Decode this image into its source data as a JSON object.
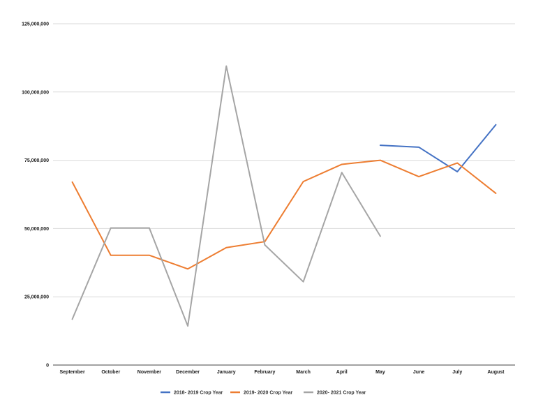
{
  "chart_data": {
    "type": "line",
    "title": "",
    "xlabel": "",
    "ylabel": "",
    "categories": [
      "September",
      "October",
      "November",
      "December",
      "January",
      "February",
      "March",
      "April",
      "May",
      "June",
      "July",
      "August"
    ],
    "y_ticks": [
      0,
      25000000,
      50000000,
      75000000,
      100000000,
      125000000
    ],
    "y_tick_labels": [
      "0",
      "25,000,000",
      "50,000,000",
      "75,000,000",
      "100,000,000",
      "125,000,000"
    ],
    "ylim": [
      0,
      125000000
    ],
    "grid": true,
    "legend_position": "bottom",
    "series": [
      {
        "name": "2018- 2019 Crop Year",
        "color": "#4472c4",
        "values": [
          null,
          null,
          null,
          null,
          null,
          null,
          null,
          null,
          80500000,
          79800000,
          70800000,
          88000000
        ]
      },
      {
        "name": "2019- 2020 Crop Year",
        "color": "#ed7d31",
        "values": [
          67000000,
          40200000,
          40200000,
          35200000,
          43000000,
          45200000,
          67200000,
          73500000,
          75000000,
          69000000,
          74000000,
          62900000
        ]
      },
      {
        "name": "2020- 2021 Crop Year",
        "color": "#a5a5a5",
        "values": [
          16800000,
          50200000,
          50200000,
          14300000,
          109500000,
          44000000,
          30500000,
          70500000,
          47200000,
          null,
          null,
          null
        ]
      }
    ]
  }
}
